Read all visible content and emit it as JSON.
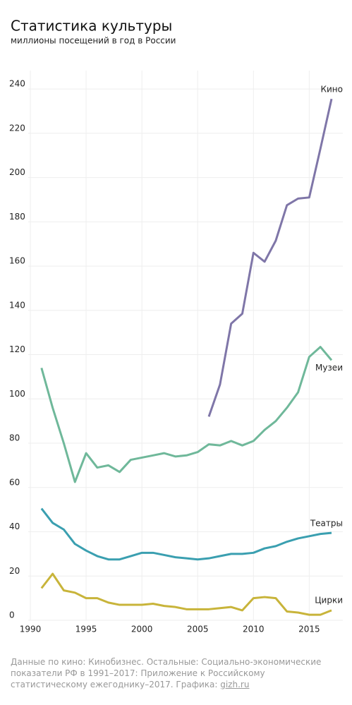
{
  "chart_data": {
    "type": "line",
    "title": "Статистика культуры",
    "subtitle": "миллионы посещений в год в России",
    "note": "Данные по кино: Кинобизнес. Остальные: Социально-экономические показатели РФ в 1991–2017: Приложение к Российскому статистическому ежегоднику–2017. Графика: ",
    "note_link": "gizh.ru",
    "xlim": [
      1990,
      2017
    ],
    "xticks": [
      1990,
      1995,
      2000,
      2005,
      2010,
      2015
    ],
    "ylim": [
      0,
      248
    ],
    "yticks": [
      0,
      20,
      40,
      60,
      80,
      100,
      120,
      140,
      160,
      180,
      200,
      220,
      240
    ],
    "grid": true,
    "series": [
      {
        "name": "Кино",
        "color": "#7f76a8",
        "x": [
          2006,
          2007,
          2008,
          2009,
          2010,
          2011,
          2012,
          2013,
          2014,
          2015,
          2016,
          2017
        ],
        "values": [
          92,
          106.5,
          134,
          138.5,
          166,
          162,
          171.5,
          187.5,
          190.5,
          191,
          213,
          235.5
        ]
      },
      {
        "name": "Музеи",
        "color": "#6fb89a",
        "x": [
          1991,
          1992,
          1993,
          1994,
          1995,
          1996,
          1997,
          1998,
          1999,
          2000,
          2001,
          2002,
          2003,
          2004,
          2005,
          2006,
          2007,
          2008,
          2009,
          2010,
          2011,
          2012,
          2013,
          2014,
          2015,
          2016,
          2017
        ],
        "values": [
          114,
          96,
          80,
          62.5,
          75.5,
          69,
          70,
          67,
          72.5,
          73.5,
          74.5,
          75.5,
          74,
          74.5,
          76,
          79.5,
          79,
          81,
          79,
          81,
          86,
          90,
          96,
          103,
          119,
          123.5,
          117.5
        ]
      },
      {
        "name": "Театры",
        "color": "#3a9fb0",
        "x": [
          1991,
          1992,
          1993,
          1994,
          1995,
          1996,
          1997,
          1998,
          1999,
          2000,
          2001,
          2002,
          2003,
          2004,
          2005,
          2006,
          2007,
          2008,
          2009,
          2010,
          2011,
          2012,
          2013,
          2014,
          2015,
          2016,
          2017
        ],
        "values": [
          50.5,
          44,
          41,
          34.5,
          31.5,
          29,
          27.5,
          27.5,
          29,
          30.5,
          30.5,
          29.5,
          28.5,
          28,
          27.5,
          28,
          29,
          30,
          30,
          30.5,
          32.5,
          33.5,
          35.5,
          37,
          38,
          39,
          39.5
        ]
      },
      {
        "name": "Цирки",
        "color": "#c8b43a",
        "x": [
          1991,
          1992,
          1993,
          1994,
          1995,
          1996,
          1997,
          1998,
          1999,
          2000,
          2001,
          2002,
          2003,
          2004,
          2005,
          2006,
          2007,
          2008,
          2009,
          2010,
          2011,
          2012,
          2013,
          2014,
          2015,
          2016,
          2017
        ],
        "values": [
          14.5,
          21,
          13.5,
          12.5,
          10,
          10,
          8,
          7,
          7,
          7,
          7.5,
          6.5,
          6,
          5,
          5,
          5,
          5.5,
          6,
          4.5,
          10,
          10.5,
          10,
          4,
          3.5,
          2.5,
          2.5,
          4.5
        ]
      }
    ]
  }
}
